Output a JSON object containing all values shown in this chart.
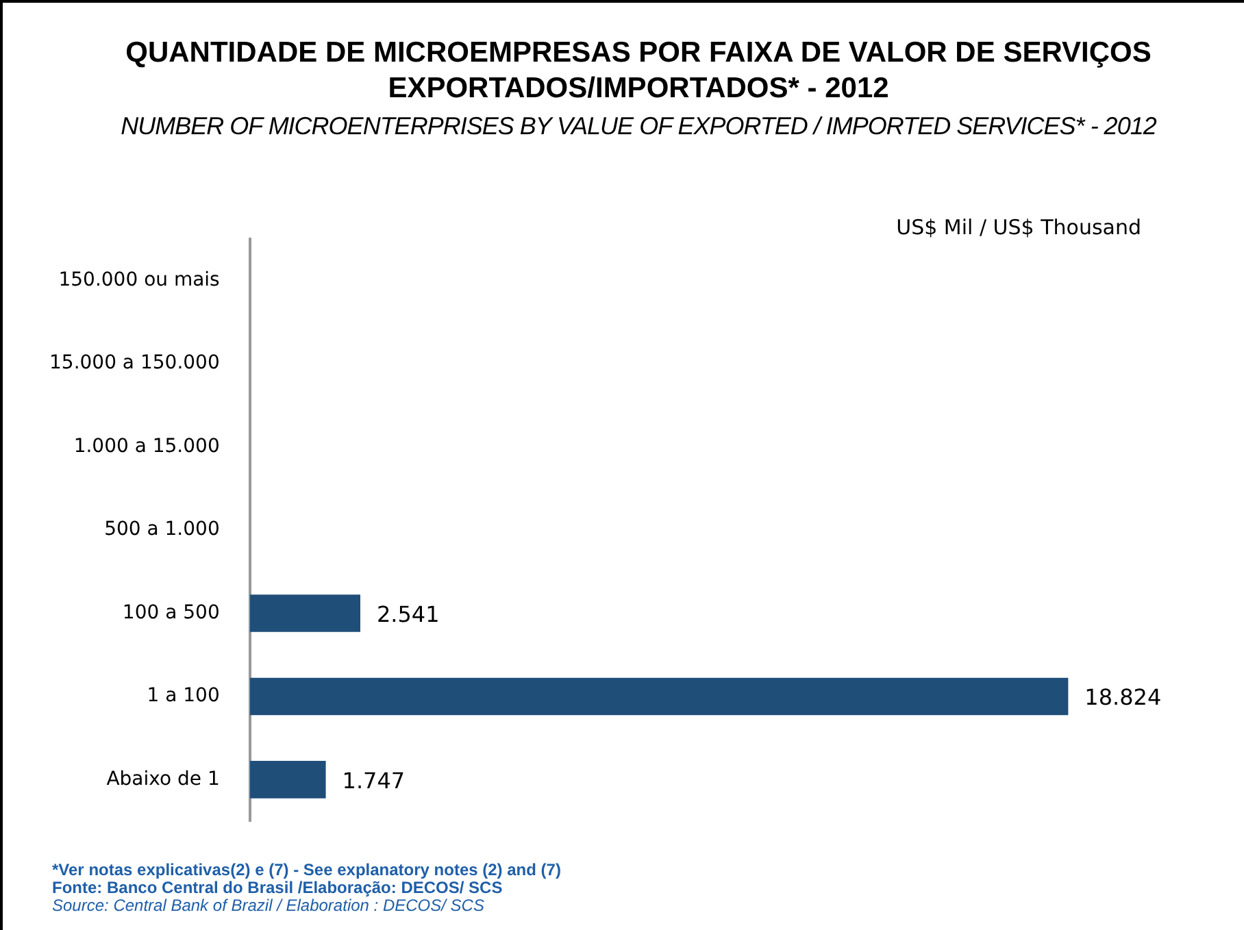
{
  "chart_data": {
    "type": "bar",
    "orientation": "horizontal",
    "title": "QUANTIDADE DE MICROEMPRESAS POR FAIXA DE VALOR DE SERVIÇOS EXPORTADOS/IMPORTADOS* - 2012",
    "subtitle": "NUMBER OF MICROENTERPRISES BY VALUE OF  EXPORTED / IMPORTED SERVICES* - 2012",
    "categories": [
      "150.000 ou mais",
      "15.000 a 150.000",
      "1.000 a 15.000",
      "500 a 1.000",
      "100 a 500",
      "1 a 100",
      "Abaixo de 1"
    ],
    "values": [
      null,
      null,
      null,
      null,
      2541,
      18824,
      1747
    ],
    "value_labels": [
      null,
      null,
      null,
      null,
      "2.541",
      "18.824",
      "1.747"
    ],
    "color": "#1f4e79",
    "grid": false,
    "legend": false,
    "tick_labels": "y",
    "annotations": [
      "US$ Mil / US$ Thousand",
      "*Ver notas explicativas(2) e (7) - See explanatory notes (2) and (7)",
      "Fonte: Banco Central do Brasil /Elaboração: DECOS/ SCS",
      "Source: Central Bank of Brazil / Elaboration : DECOS/ SCS"
    ]
  }
}
